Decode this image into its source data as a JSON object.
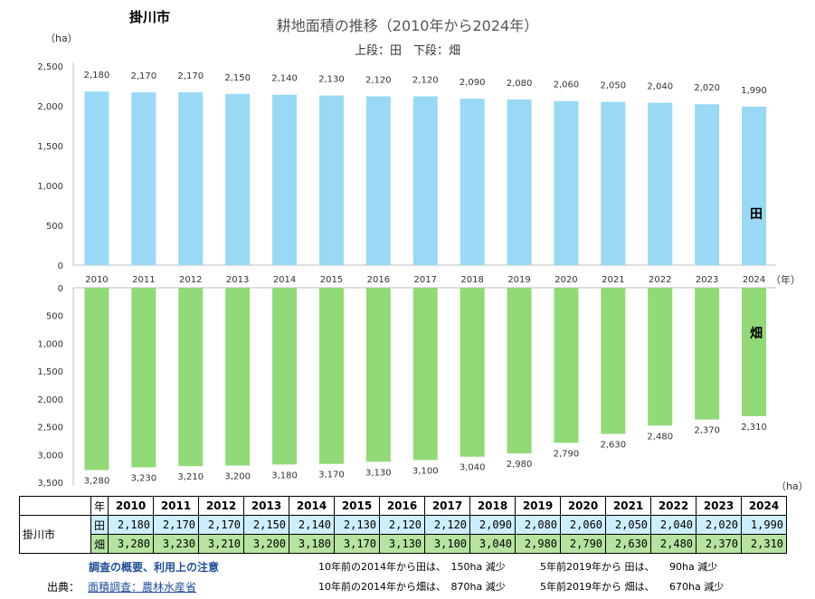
{
  "city": "掛川市",
  "title": "耕地面積の推移（2010年から2024年）",
  "subtitle": "上段：田　下段：畑",
  "chart_data": {
    "type": "bar",
    "categories": [
      "2010",
      "2011",
      "2012",
      "2013",
      "2014",
      "2015",
      "2016",
      "2017",
      "2018",
      "2019",
      "2020",
      "2021",
      "2022",
      "2023",
      "2024"
    ],
    "series": [
      {
        "name": "田",
        "color": "#99d9f5",
        "values": [
          2180,
          2170,
          2170,
          2150,
          2140,
          2130,
          2120,
          2120,
          2090,
          2080,
          2060,
          2050,
          2040,
          2020,
          1990
        ]
      },
      {
        "name": "畑",
        "color": "#92d977",
        "values": [
          3280,
          3230,
          3210,
          3200,
          3180,
          3170,
          3130,
          3100,
          3040,
          2980,
          2790,
          2630,
          2480,
          2370,
          2310
        ]
      }
    ],
    "top_axis": {
      "unit": "（ha）",
      "ylim": [
        0,
        2500
      ],
      "ticks": [
        "0",
        "500",
        "1,000",
        "1,500",
        "2,000",
        "2,500"
      ]
    },
    "bottom_axis": {
      "unit": "（ha）",
      "ylim": [
        0,
        3500
      ],
      "ticks": [
        "0",
        "500",
        "1,000",
        "1,500",
        "2,000",
        "2,500",
        "3,000",
        "3,500"
      ]
    },
    "x_unit": "（年）"
  },
  "table": {
    "year_header": "年",
    "city_label": "掛川市",
    "rows": [
      {
        "label": "田",
        "values": [
          "2,180",
          "2,170",
          "2,170",
          "2,150",
          "2,140",
          "2,130",
          "2,120",
          "2,120",
          "2,090",
          "2,080",
          "2,060",
          "2,050",
          "2,040",
          "2,020",
          "1,990"
        ]
      },
      {
        "label": "畑",
        "values": [
          "3,280",
          "3,230",
          "3,210",
          "3,200",
          "3,180",
          "3,170",
          "3,130",
          "3,100",
          "3,040",
          "2,980",
          "2,790",
          "2,630",
          "2,480",
          "2,370",
          "2,310"
        ]
      }
    ]
  },
  "footer": {
    "notes_link": "調査の概要、利用上の注意",
    "source_label": "出典：",
    "source_link": "面積調査：農林水産省",
    "ta_10y": "10年前の2014年から田は、　150ha 減少",
    "ha_10y": "10年前の2014年から畑は、　870ha 減少",
    "ta_5y": "5年前2019年から 田は、　　90ha 減少",
    "ha_5y": "5年前2019年から 畑は、　　670ha 減少"
  }
}
